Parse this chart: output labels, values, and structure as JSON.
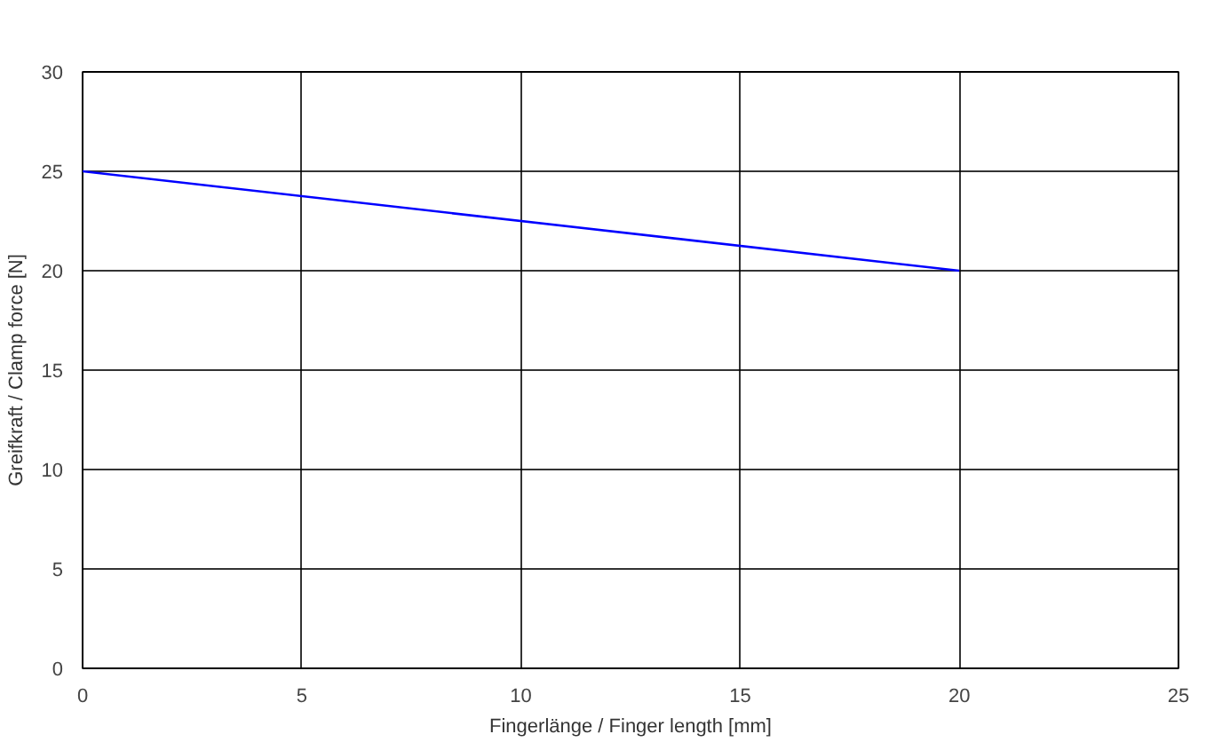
{
  "chart_data": {
    "type": "line",
    "xlabel": "Fingerlänge / Finger length [mm]",
    "ylabel": "Greifkraft / Clamp force [N]",
    "series": [
      {
        "color": "#0000ff",
        "x": [
          0,
          20
        ],
        "values": [
          25,
          20
        ]
      }
    ],
    "xlim": [
      0,
      25
    ],
    "xticks": [
      0,
      5,
      10,
      15,
      20,
      25
    ],
    "ylim": [
      0,
      30
    ],
    "yticks": [
      0,
      5,
      10,
      15,
      20,
      25,
      30
    ],
    "grid": true
  }
}
